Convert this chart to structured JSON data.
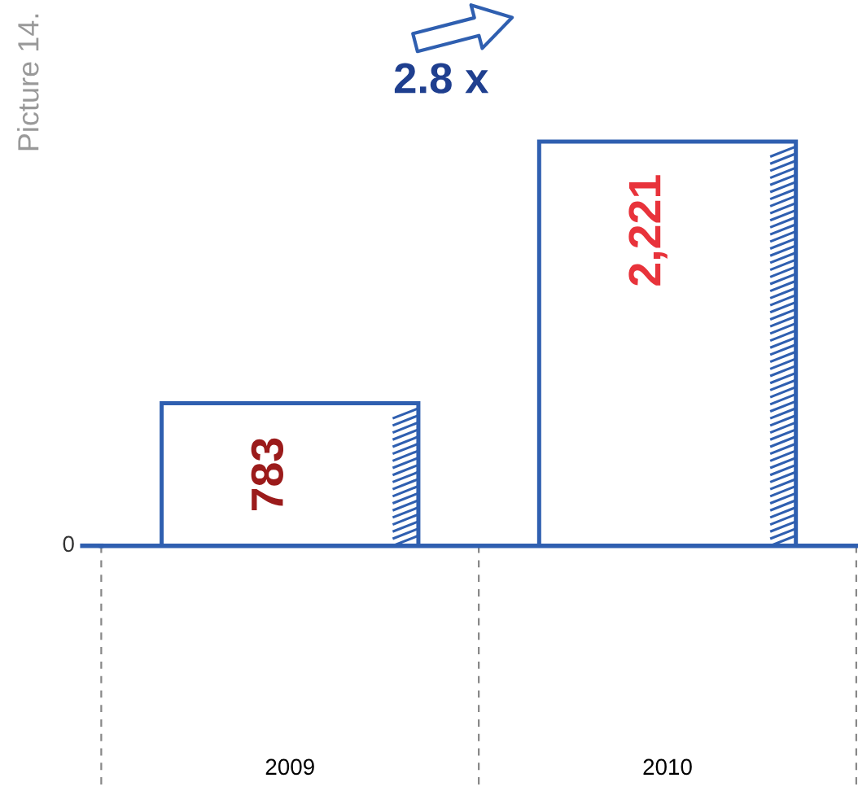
{
  "chart_data": {
    "type": "bar",
    "title": "Picture 14.",
    "categories": [
      "2009",
      "2010"
    ],
    "values": [
      783,
      2221
    ],
    "value_labels": [
      "783",
      "2,221"
    ],
    "color": "#2f5fb0",
    "annotations": [
      "2.8 x",
      "0"
    ],
    "grid": false,
    "legend": false
  }
}
